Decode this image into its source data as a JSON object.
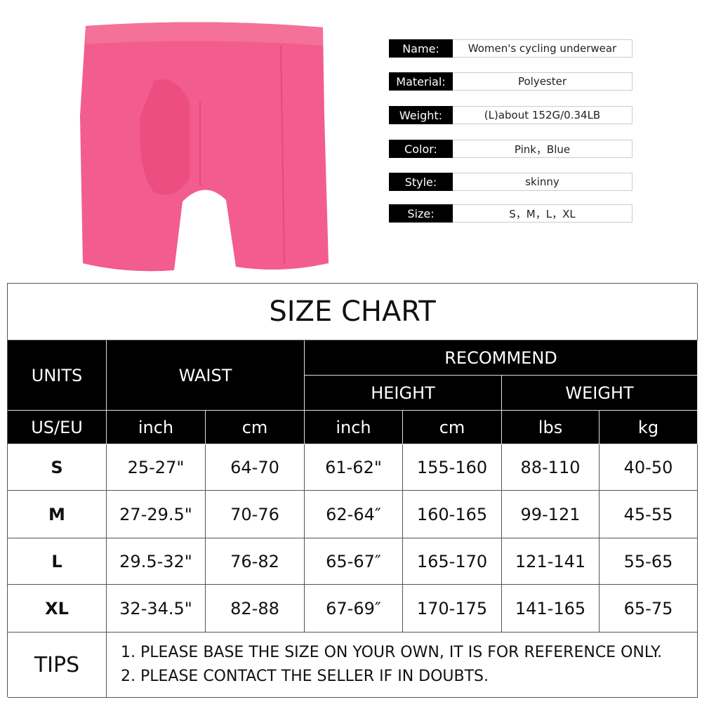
{
  "colors": {
    "product": "#f25c8e",
    "header_bg": "#000000"
  },
  "specs": [
    {
      "label": "Name:",
      "value": "Women's cycling underwear"
    },
    {
      "label": "Material:",
      "value": "Polyester"
    },
    {
      "label": "Weight:",
      "value": "(L)about 152G/0.34LB"
    },
    {
      "label": "Color:",
      "value": "Pink，Blue"
    },
    {
      "label": "Style:",
      "value": "skinny"
    },
    {
      "label": "Size:",
      "value": "S，M，L，XL"
    }
  ],
  "size_chart": {
    "title": "SIZE CHART",
    "headers": {
      "units": "UNITS",
      "waist": "WAIST",
      "recommend": "RECOMMEND",
      "height": "HEIGHT",
      "weight": "WEIGHT"
    },
    "subheaders": [
      "US/EU",
      "inch",
      "cm",
      "inch",
      "cm",
      "lbs",
      "kg"
    ],
    "rows": [
      [
        "S",
        "25-27\"",
        "64-70",
        "61-62\"",
        "155-160",
        "88-110",
        "40-50"
      ],
      [
        "M",
        "27-29.5\"",
        "70-76",
        "62-64″",
        "160-165",
        "99-121",
        "45-55"
      ],
      [
        "L",
        "29.5-32\"",
        "76-82",
        "65-67″",
        "165-170",
        "121-141",
        "55-65"
      ],
      [
        "XL",
        "32-34.5\"",
        "82-88",
        "67-69″",
        "170-175",
        "141-165",
        "65-75"
      ]
    ],
    "tips_label": "TIPS",
    "tips": [
      "1. PLEASE BASE THE SIZE ON YOUR OWN, IT IS FOR REFERENCE ONLY.",
      "2. PLEASE CONTACT THE SELLER IF IN DOUBTS."
    ]
  }
}
